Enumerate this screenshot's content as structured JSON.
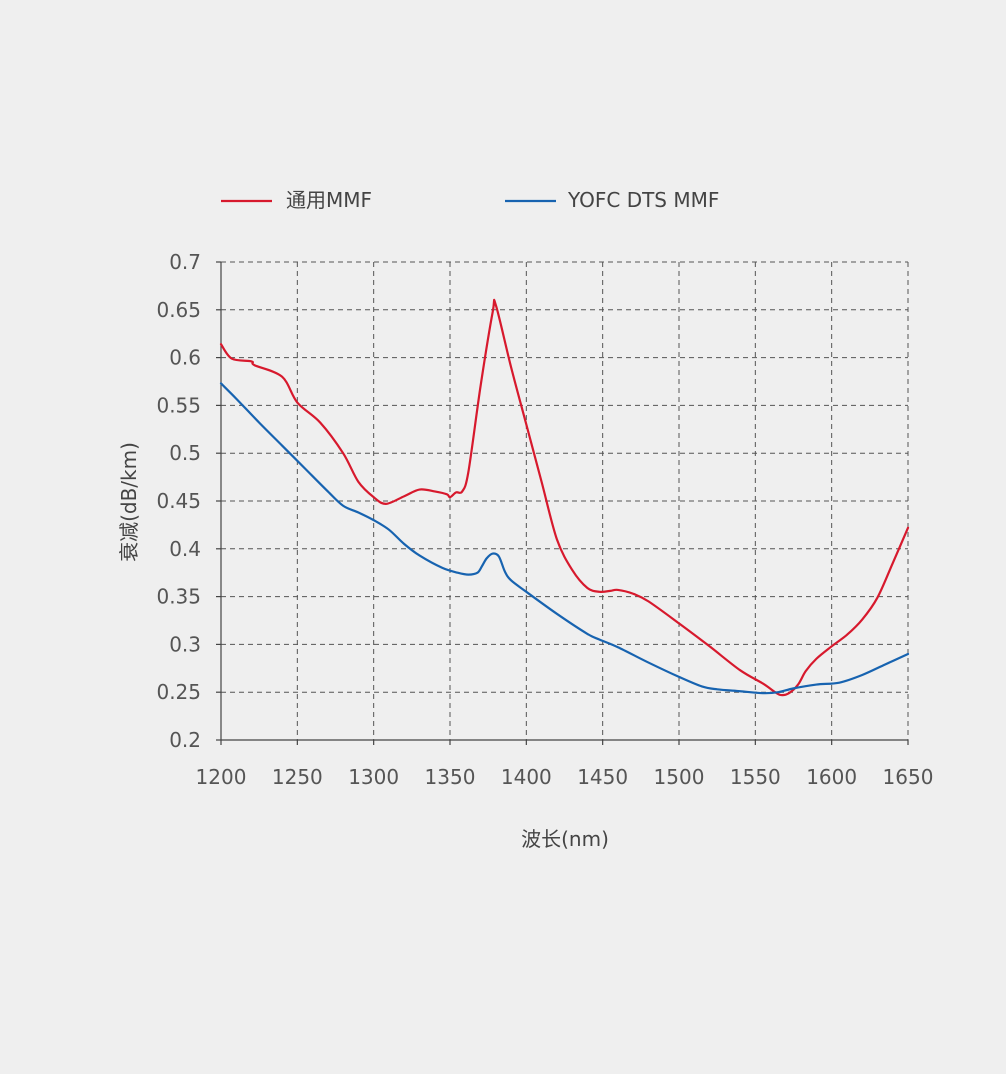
{
  "chart_data": {
    "type": "line",
    "title": "",
    "xlabel": "波长(nm)",
    "ylabel": "衰减(dB/km)",
    "xlim": [
      1200,
      1650
    ],
    "ylim": [
      0.2,
      0.7
    ],
    "x_ticks": [
      1200,
      1250,
      1300,
      1350,
      1400,
      1450,
      1500,
      1550,
      1600,
      1650
    ],
    "x_tick_labels": [
      "1200",
      "1250",
      "1300",
      "1350",
      "1400",
      "1450",
      "1500",
      "1550",
      "1600",
      "1650"
    ],
    "y_ticks": [
      0.2,
      0.25,
      0.3,
      0.35,
      0.4,
      0.45,
      0.5,
      0.55,
      0.6,
      0.65,
      0.7
    ],
    "y_tick_labels": [
      "0.2",
      "0.25",
      "0.3",
      "0.35",
      "0.4",
      "0.45",
      "0.5",
      "0.55",
      "0.6",
      "0.65",
      "0.7"
    ],
    "grid": true,
    "legend_position": "top",
    "series": [
      {
        "name": "通用MMF",
        "color": "#d7192d",
        "x": [
          1200,
          1207,
          1220,
          1222,
          1240,
          1250,
          1265,
          1280,
          1290,
          1300,
          1308,
          1320,
          1330,
          1340,
          1348,
          1350,
          1354,
          1358,
          1362,
          1370,
          1378,
          1380,
          1390,
          1400,
          1410,
          1420,
          1430,
          1440,
          1448,
          1455,
          1460,
          1470,
          1480,
          1500,
          1520,
          1540,
          1555,
          1563,
          1567,
          1572,
          1578,
          1583,
          1590,
          1600,
          1610,
          1620,
          1630,
          1640,
          1650
        ],
        "y": [
          0.614,
          0.599,
          0.596,
          0.592,
          0.58,
          0.553,
          0.532,
          0.5,
          0.47,
          0.454,
          0.447,
          0.455,
          0.462,
          0.46,
          0.457,
          0.454,
          0.459,
          0.46,
          0.48,
          0.57,
          0.648,
          0.655,
          0.59,
          0.53,
          0.47,
          0.41,
          0.378,
          0.359,
          0.355,
          0.356,
          0.357,
          0.353,
          0.345,
          0.322,
          0.298,
          0.273,
          0.259,
          0.25,
          0.247,
          0.249,
          0.258,
          0.272,
          0.285,
          0.298,
          0.31,
          0.326,
          0.349,
          0.385,
          0.422
        ]
      },
      {
        "name": "YOFC DTS MMF",
        "color": "#1763b0",
        "x": [
          1200,
          1210,
          1225,
          1240,
          1255,
          1270,
          1280,
          1290,
          1300,
          1310,
          1320,
          1330,
          1345,
          1355,
          1362,
          1368,
          1371,
          1374,
          1378,
          1382,
          1386,
          1390,
          1400,
          1420,
          1440,
          1448,
          1460,
          1480,
          1500,
          1515,
          1525,
          1540,
          1555,
          1565,
          1575,
          1590,
          1605,
          1620,
          1635,
          1650
        ],
        "y": [
          0.573,
          0.557,
          0.532,
          0.508,
          0.484,
          0.46,
          0.445,
          0.438,
          0.43,
          0.42,
          0.405,
          0.393,
          0.38,
          0.375,
          0.373,
          0.375,
          0.382,
          0.39,
          0.395,
          0.392,
          0.376,
          0.367,
          0.355,
          0.332,
          0.311,
          0.305,
          0.297,
          0.281,
          0.266,
          0.256,
          0.253,
          0.251,
          0.249,
          0.25,
          0.254,
          0.258,
          0.26,
          0.268,
          0.279,
          0.29
        ]
      }
    ]
  }
}
